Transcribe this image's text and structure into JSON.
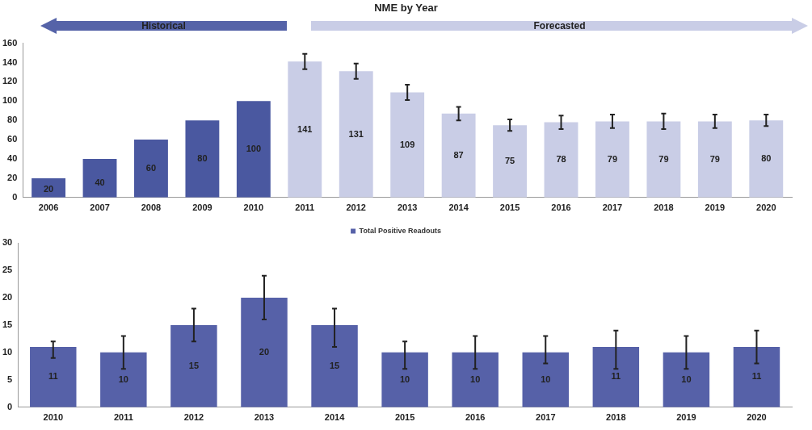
{
  "chart_data": [
    {
      "type": "bar",
      "title": "NME by Year",
      "annotations": [
        "Historical",
        "Forecasted"
      ],
      "categories": [
        "2006",
        "2007",
        "2008",
        "2009",
        "2010",
        "2011",
        "2012",
        "2013",
        "2014",
        "2015",
        "2016",
        "2017",
        "2018",
        "2019",
        "2020"
      ],
      "values": [
        20,
        40,
        60,
        80,
        100,
        141,
        131,
        109,
        87,
        75,
        78,
        79,
        79,
        79,
        80
      ],
      "colors": [
        "#4a58a0",
        "#4a58a0",
        "#4a58a0",
        "#4a58a0",
        "#4a58a0",
        "#c9cde6",
        "#c9cde6",
        "#c9cde6",
        "#c9cde6",
        "#c9cde6",
        "#c9cde6",
        "#c9cde6",
        "#c9cde6",
        "#c9cde6",
        "#c9cde6"
      ],
      "errors": [
        null,
        null,
        null,
        null,
        null,
        8,
        8,
        8,
        7,
        6,
        7,
        7,
        8,
        7,
        6
      ],
      "data_labels": true,
      "ylim": [
        0,
        160
      ],
      "yticks": [
        0,
        20,
        40,
        60,
        80,
        100,
        120,
        140,
        160
      ],
      "grid": false,
      "legend": false
    },
    {
      "type": "bar",
      "categories": [
        "2010",
        "2011",
        "2012",
        "2013",
        "2014",
        "2015",
        "2016",
        "2017",
        "2018",
        "2019",
        "2020"
      ],
      "series": [
        {
          "name": "Total Positive Readouts",
          "color": "#5661a8",
          "values": [
            11,
            10,
            15,
            20,
            15,
            10,
            10,
            10,
            11,
            10,
            11
          ],
          "errors": [
            [
              9,
              12
            ],
            [
              7,
              13
            ],
            [
              12,
              18
            ],
            [
              16,
              24
            ],
            [
              11,
              18
            ],
            [
              7,
              12
            ],
            [
              7,
              13
            ],
            [
              8,
              13
            ],
            [
              7,
              14
            ],
            [
              7,
              13
            ],
            [
              8,
              14
            ]
          ]
        }
      ],
      "data_labels": true,
      "ylim": [
        0,
        30
      ],
      "yticks": [
        0,
        5,
        10,
        15,
        20,
        25,
        30
      ],
      "grid": false,
      "legend": "top"
    }
  ]
}
